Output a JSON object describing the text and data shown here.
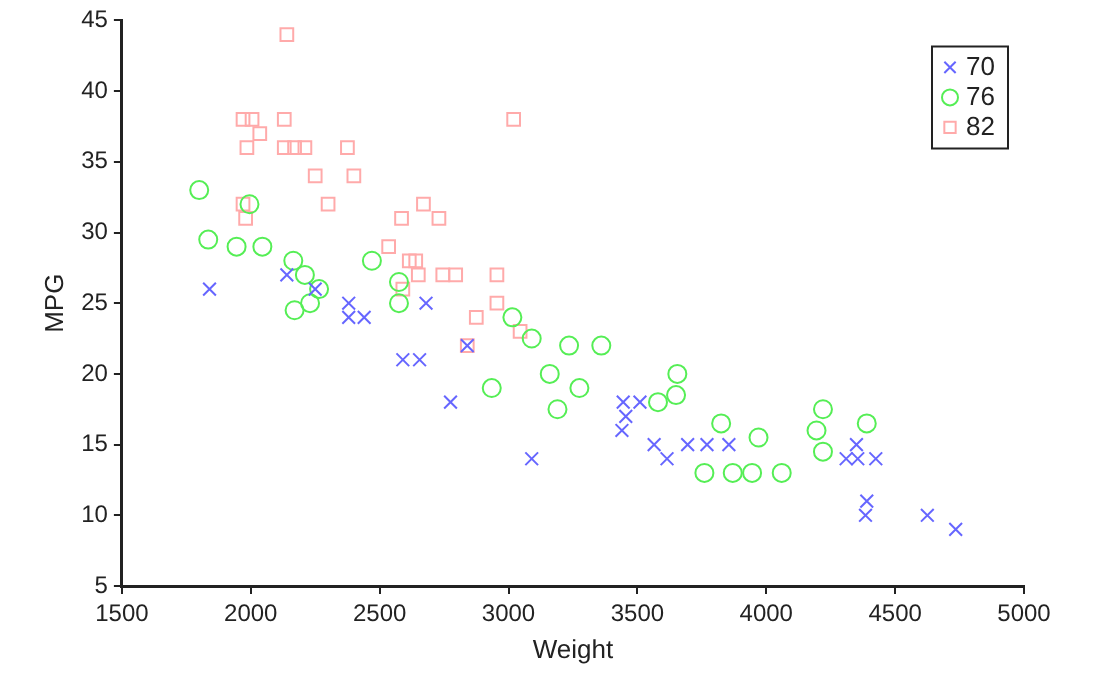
{
  "chart_data": {
    "type": "scatter",
    "xlabel": "Weight",
    "ylabel": "MPG",
    "xlim": [
      1500,
      5000
    ],
    "xticks": [
      1500,
      2000,
      2500,
      3000,
      3500,
      4000,
      4500,
      5000
    ],
    "ylim": [
      5,
      45
    ],
    "yticks": [
      5,
      10,
      15,
      20,
      25,
      30,
      35,
      40,
      45
    ],
    "grid": false,
    "legend": "top right",
    "series": [
      {
        "name": "70",
        "color": "#6666ff",
        "marker": "cross",
        "x": [
          1840,
          2140,
          2250,
          2380,
          2380,
          2440,
          2680,
          2590,
          2655,
          2775,
          2840,
          3090,
          3445,
          3510,
          3455,
          3440,
          3565,
          3615,
          3695,
          3770,
          3855,
          4350,
          4310,
          4355,
          4425,
          4390,
          4385,
          4625,
          4735
        ],
        "values": [
          26,
          27,
          26,
          25,
          24,
          24,
          25,
          21,
          21,
          18,
          22,
          14,
          18,
          18,
          17,
          16,
          15,
          14,
          15,
          15,
          15,
          15,
          14,
          14,
          14,
          11,
          10,
          10,
          9
        ]
      },
      {
        "name": "76",
        "color": "#55ee55",
        "marker": "circle",
        "x": [
          1800,
          1995,
          1835,
          1945,
          2045,
          2165,
          2210,
          2265,
          2170,
          2230,
          2470,
          2575,
          2575,
          3015,
          3090,
          3235,
          2935,
          3160,
          3190,
          3360,
          3275,
          3580,
          3650,
          3655,
          3825,
          3760,
          3870,
          3945,
          4060,
          3970,
          4220,
          4195,
          4220,
          4390
        ],
        "values": [
          33,
          32,
          29.5,
          29,
          29,
          28,
          27,
          26,
          24.5,
          25,
          28,
          26.5,
          25,
          24,
          22.5,
          22,
          19,
          20,
          17.5,
          22,
          19,
          18,
          18.5,
          20,
          16.5,
          13,
          13,
          13,
          13,
          15.5,
          17.5,
          16,
          14.5,
          16.5
        ]
      },
      {
        "name": "82",
        "color": "#ffaaaa",
        "marker": "square",
        "x": [
          2140,
          1970,
          2005,
          2130,
          3020,
          2035,
          1985,
          2130,
          2170,
          2210,
          2375,
          2250,
          2400,
          1970,
          2300,
          2670,
          1980,
          2585,
          2730,
          2535,
          2615,
          2640,
          2650,
          2745,
          2795,
          2955,
          2590,
          2875,
          2955,
          3045,
          2840
        ],
        "values": [
          44,
          38,
          38,
          38,
          38,
          37,
          36,
          36,
          36,
          36,
          36,
          34,
          34,
          32,
          32,
          32,
          31,
          31,
          31,
          29,
          28,
          28,
          27,
          27,
          27,
          27,
          26,
          24,
          25,
          23,
          22
        ]
      }
    ]
  }
}
